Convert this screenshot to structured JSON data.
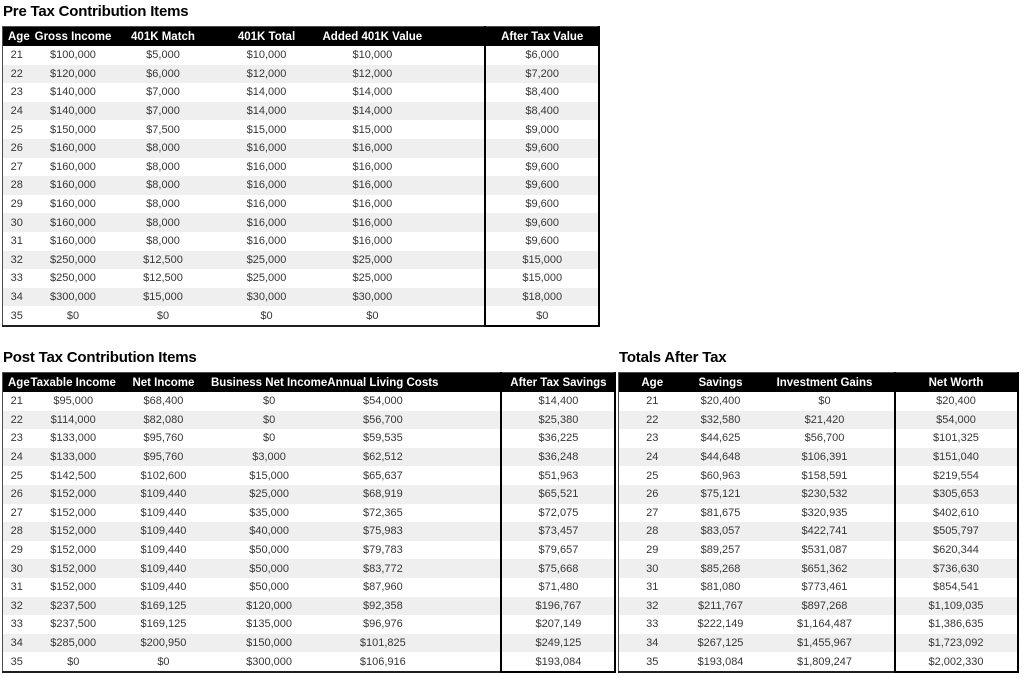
{
  "colors": {
    "header_bg": "#000000",
    "header_text": "#ffffff",
    "row_stripe": "#efefef",
    "cell_text": "#363636",
    "box_border": "#000000"
  },
  "tables": [
    {
      "title": "Pre Tax Contribution Items",
      "headers": [
        "Age",
        "Gross Income",
        "401K Match",
        "401K Total",
        "Added 401K Value",
        "After Tax Value"
      ],
      "rows": [
        [
          "21",
          "$100,000",
          "$5,000",
          "$10,000",
          "$10,000",
          "$6,000"
        ],
        [
          "22",
          "$120,000",
          "$6,000",
          "$12,000",
          "$12,000",
          "$7,200"
        ],
        [
          "23",
          "$140,000",
          "$7,000",
          "$14,000",
          "$14,000",
          "$8,400"
        ],
        [
          "24",
          "$140,000",
          "$7,000",
          "$14,000",
          "$14,000",
          "$8,400"
        ],
        [
          "25",
          "$150,000",
          "$7,500",
          "$15,000",
          "$15,000",
          "$9,000"
        ],
        [
          "26",
          "$160,000",
          "$8,000",
          "$16,000",
          "$16,000",
          "$9,600"
        ],
        [
          "27",
          "$160,000",
          "$8,000",
          "$16,000",
          "$16,000",
          "$9,600"
        ],
        [
          "28",
          "$160,000",
          "$8,000",
          "$16,000",
          "$16,000",
          "$9,600"
        ],
        [
          "29",
          "$160,000",
          "$8,000",
          "$16,000",
          "$16,000",
          "$9,600"
        ],
        [
          "30",
          "$160,000",
          "$8,000",
          "$16,000",
          "$16,000",
          "$9,600"
        ],
        [
          "31",
          "$160,000",
          "$8,000",
          "$16,000",
          "$16,000",
          "$9,600"
        ],
        [
          "32",
          "$250,000",
          "$12,500",
          "$25,000",
          "$25,000",
          "$15,000"
        ],
        [
          "33",
          "$250,000",
          "$12,500",
          "$25,000",
          "$25,000",
          "$15,000"
        ],
        [
          "34",
          "$300,000",
          "$15,000",
          "$30,000",
          "$30,000",
          "$18,000"
        ],
        [
          "35",
          "$0",
          "$0",
          "$0",
          "$0",
          "$0"
        ]
      ]
    },
    {
      "title": "Post Tax Contribution Items",
      "headers": [
        "Age",
        "Taxable Income",
        "Net Income",
        "Business Net Income",
        "Annual Living Costs",
        "After Tax Savings"
      ],
      "rows": [
        [
          "21",
          "$95,000",
          "$68,400",
          "$0",
          "$54,000",
          "$14,400"
        ],
        [
          "22",
          "$114,000",
          "$82,080",
          "$0",
          "$56,700",
          "$25,380"
        ],
        [
          "23",
          "$133,000",
          "$95,760",
          "$0",
          "$59,535",
          "$36,225"
        ],
        [
          "24",
          "$133,000",
          "$95,760",
          "$3,000",
          "$62,512",
          "$36,248"
        ],
        [
          "25",
          "$142,500",
          "$102,600",
          "$15,000",
          "$65,637",
          "$51,963"
        ],
        [
          "26",
          "$152,000",
          "$109,440",
          "$25,000",
          "$68,919",
          "$65,521"
        ],
        [
          "27",
          "$152,000",
          "$109,440",
          "$35,000",
          "$72,365",
          "$72,075"
        ],
        [
          "28",
          "$152,000",
          "$109,440",
          "$40,000",
          "$75,983",
          "$73,457"
        ],
        [
          "29",
          "$152,000",
          "$109,440",
          "$50,000",
          "$79,783",
          "$79,657"
        ],
        [
          "30",
          "$152,000",
          "$109,440",
          "$50,000",
          "$83,772",
          "$75,668"
        ],
        [
          "31",
          "$152,000",
          "$109,440",
          "$50,000",
          "$87,960",
          "$71,480"
        ],
        [
          "32",
          "$237,500",
          "$169,125",
          "$120,000",
          "$92,358",
          "$196,767"
        ],
        [
          "33",
          "$237,500",
          "$169,125",
          "$135,000",
          "$96,976",
          "$207,149"
        ],
        [
          "34",
          "$285,000",
          "$200,950",
          "$150,000",
          "$101,825",
          "$249,125"
        ],
        [
          "35",
          "$0",
          "$0",
          "$300,000",
          "$106,916",
          "$193,084"
        ]
      ]
    },
    {
      "title": "Totals After Tax",
      "headers": [
        "Age",
        "Savings",
        "Investment Gains",
        "Net Worth"
      ],
      "rows": [
        [
          "21",
          "$20,400",
          "$0",
          "$20,400"
        ],
        [
          "22",
          "$32,580",
          "$21,420",
          "$54,000"
        ],
        [
          "23",
          "$44,625",
          "$56,700",
          "$101,325"
        ],
        [
          "24",
          "$44,648",
          "$106,391",
          "$151,040"
        ],
        [
          "25",
          "$60,963",
          "$158,591",
          "$219,554"
        ],
        [
          "26",
          "$75,121",
          "$230,532",
          "$305,653"
        ],
        [
          "27",
          "$81,675",
          "$320,935",
          "$402,610"
        ],
        [
          "28",
          "$83,057",
          "$422,741",
          "$505,797"
        ],
        [
          "29",
          "$89,257",
          "$531,087",
          "$620,344"
        ],
        [
          "30",
          "$85,268",
          "$651,362",
          "$736,630"
        ],
        [
          "31",
          "$81,080",
          "$773,461",
          "$854,541"
        ],
        [
          "32",
          "$211,767",
          "$897,268",
          "$1,109,035"
        ],
        [
          "33",
          "$222,149",
          "$1,164,487",
          "$1,386,635"
        ],
        [
          "34",
          "$267,125",
          "$1,455,967",
          "$1,723,092"
        ],
        [
          "35",
          "$193,084",
          "$1,809,247",
          "$2,002,330"
        ]
      ]
    }
  ]
}
